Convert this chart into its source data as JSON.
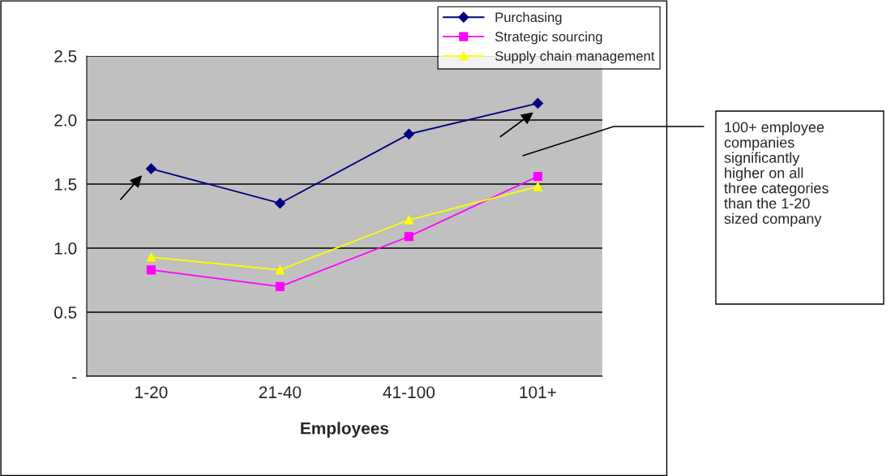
{
  "chart_data": {
    "type": "line",
    "xlabel": "Employees",
    "categories": [
      "1-20",
      "21-40",
      "41-100",
      "101+"
    ],
    "series": [
      {
        "name": "Purchasing",
        "color": "#000080",
        "marker": "diamond",
        "values": [
          1.62,
          1.35,
          1.89,
          2.13
        ]
      },
      {
        "name": "Strategic sourcing",
        "color": "#FF00FF",
        "marker": "square",
        "values": [
          0.83,
          0.7,
          1.09,
          1.56
        ]
      },
      {
        "name": "Supply chain management",
        "color": "#FFFF00",
        "marker": "triangle",
        "values": [
          0.93,
          0.83,
          1.22,
          1.48
        ]
      }
    ],
    "ylim": [
      0,
      2.5
    ],
    "yticks": [
      {
        "value": 0,
        "label": "-"
      },
      0.5,
      {
        "value": 1,
        "label": "1.0"
      },
      1.5,
      {
        "value": 2,
        "label": "2.0"
      },
      2.5
    ],
    "grid": "y",
    "legend": "top right",
    "line_style": "solid",
    "annotations": [
      "100+ employee\ncompanies\nsignificantly\nhigher on all\nthree categories\nthan the 1-20\nsized company"
    ]
  }
}
